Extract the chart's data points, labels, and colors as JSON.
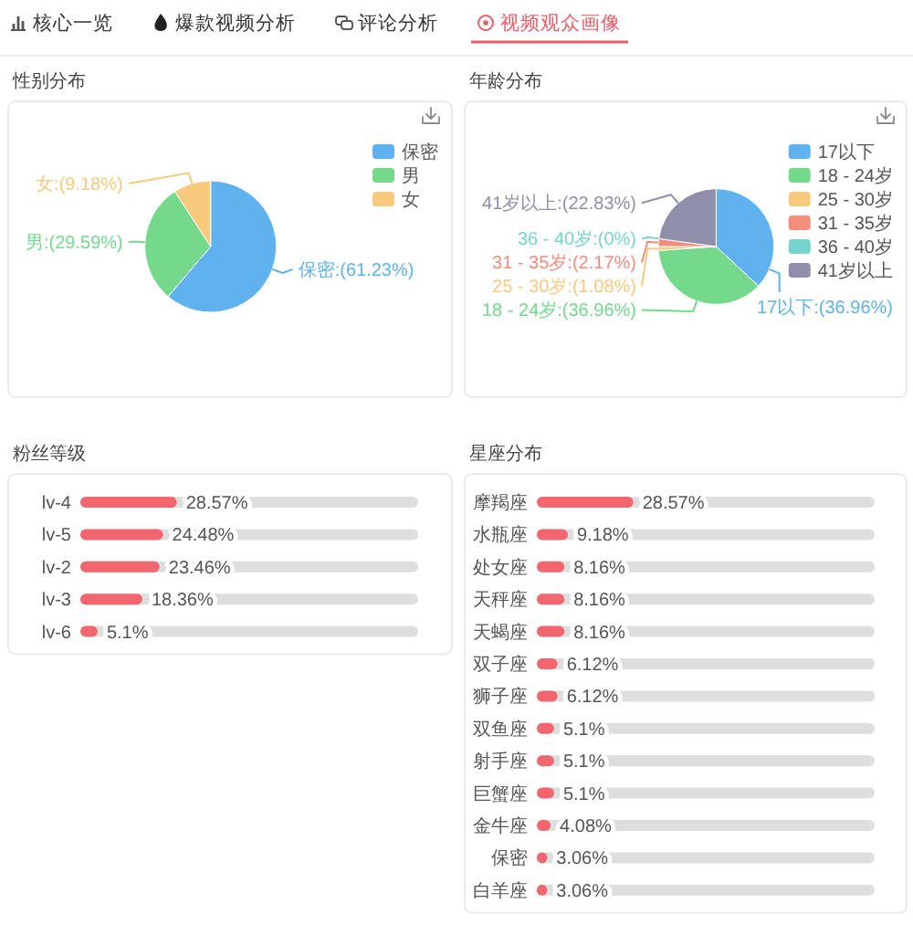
{
  "chart_data": [
    {
      "type": "other",
      "annotations": [
        "核心一览",
        "爆款视频分析",
        "评论分析",
        "视频观众画像"
      ]
    },
    {
      "type": "pie",
      "title": "性别分布",
      "categories": [
        "保密",
        "男",
        "女"
      ],
      "values": [
        61.23,
        29.59,
        9.18
      ],
      "colors": [
        "#60b2ef",
        "#75d98c",
        "#f8ca7e"
      ],
      "value_labels": [
        "保密:(61.23%)",
        "男:(29.59%)",
        "女:(9.18%)"
      ],
      "legend": "top right"
    },
    {
      "type": "pie",
      "title": "年龄分布",
      "categories": [
        "17以下",
        "18 - 24岁",
        "25 - 30岁",
        "31 - 35岁",
        "36 - 40岁",
        "41岁以上"
      ],
      "values": [
        36.96,
        36.96,
        1.08,
        2.17,
        0,
        22.83
      ],
      "colors": [
        "#60b2ef",
        "#75d98c",
        "#f8ca7e",
        "#f58d7d",
        "#75d5cd",
        "#8f8fab"
      ],
      "value_labels": [
        "17以下:(36.96%)",
        "18 - 24岁:(36.96%)",
        "25 - 30岁:(1.08%)",
        "31 - 35岁:(2.17%)",
        "36 - 40岁:(0%)",
        "41岁以上:(22.83%)"
      ],
      "legend": "top right"
    },
    {
      "type": "bar",
      "orientation": "horizontal",
      "title": "粉丝等级",
      "categories": [
        "lv-4",
        "lv-5",
        "lv-2",
        "lv-3",
        "lv-6"
      ],
      "values": [
        28.57,
        24.48,
        23.46,
        18.36,
        5.1
      ],
      "color": "#f2666f",
      "value_labels": [
        "28.57%",
        "24.48%",
        "23.46%",
        "18.36%",
        "5.1%"
      ],
      "xlim": [
        0,
        100
      ],
      "tick_labels": "y"
    },
    {
      "type": "bar",
      "orientation": "horizontal",
      "title": "星座分布",
      "categories": [
        "摩羯座",
        "水瓶座",
        "处女座",
        "天秤座",
        "天蝎座",
        "双子座",
        "狮子座",
        "双鱼座",
        "射手座",
        "巨蟹座",
        "金牛座",
        "保密",
        "白羊座"
      ],
      "values": [
        28.57,
        9.18,
        8.16,
        8.16,
        8.16,
        6.12,
        6.12,
        5.1,
        5.1,
        5.1,
        4.08,
        3.06,
        3.06
      ],
      "color": "#f2666f",
      "value_labels": [
        "28.57%",
        "9.18%",
        "8.16%",
        "8.16%",
        "8.16%",
        "6.12%",
        "6.12%",
        "5.1%",
        "5.1%",
        "5.1%",
        "4.08%",
        "3.06%",
        "3.06%"
      ],
      "xlim": [
        0,
        100
      ],
      "tick_labels": "y"
    }
  ]
}
